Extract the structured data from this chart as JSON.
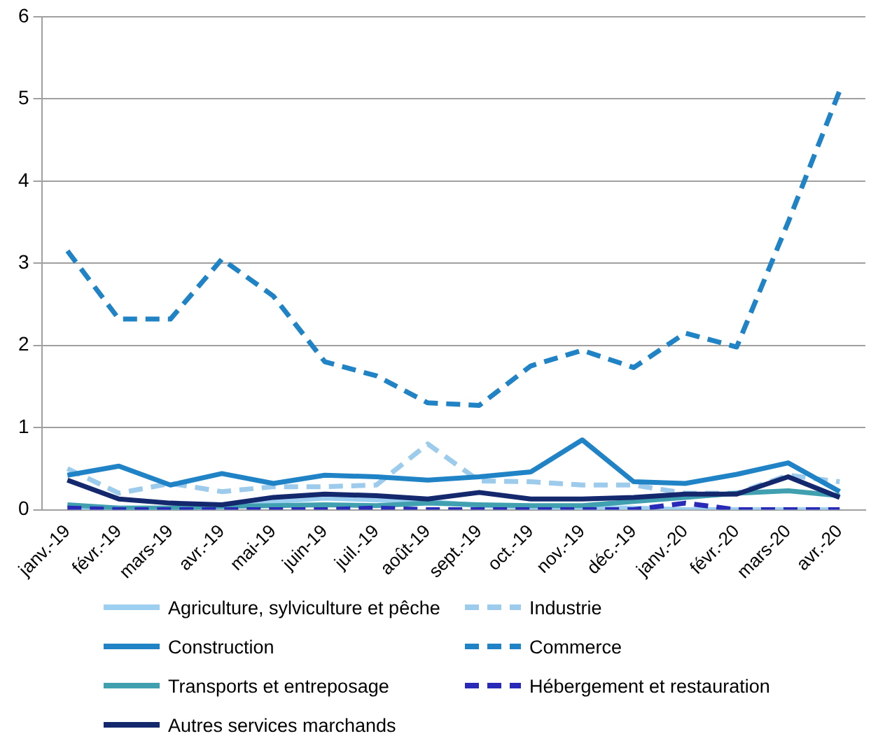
{
  "chart_data": {
    "type": "line",
    "categories": [
      "janv.-19",
      "févr.-19",
      "mars-19",
      "avr.-19",
      "mai-19",
      "juin-19",
      "juil.-19",
      "août-19",
      "sept.-19",
      "oct.-19",
      "nov.-19",
      "déc.-19",
      "janv.-20",
      "févr.-20",
      "mars-20",
      "avr.-20"
    ],
    "series": [
      {
        "name": "Agriculture, sylviculture et pêche",
        "color": "#9dd0f0",
        "line_style": "solid",
        "values": [
          0.03,
          0.02,
          0.02,
          0.03,
          0.1,
          0.14,
          0.12,
          0.1,
          0.05,
          0.03,
          0.02,
          0.02,
          0,
          0,
          0,
          0
        ]
      },
      {
        "name": "Industrie",
        "color": "#9dcbec",
        "line_style": "dashed",
        "values": [
          0.5,
          0.2,
          0.32,
          0.22,
          0.28,
          0.28,
          0.3,
          0.8,
          0.35,
          0.34,
          0.3,
          0.3,
          0.2,
          0.2,
          0.42,
          0.34
        ]
      },
      {
        "name": "Construction",
        "color": "#2083c6",
        "line_style": "solid",
        "values": [
          0.42,
          0.53,
          0.3,
          0.44,
          0.32,
          0.42,
          0.4,
          0.36,
          0.4,
          0.46,
          0.85,
          0.34,
          0.32,
          0.43,
          0.57,
          0.22
        ]
      },
      {
        "name": "Commerce",
        "color": "#2083c6",
        "line_style": "dashed",
        "values": [
          3.15,
          2.32,
          2.32,
          3.05,
          2.6,
          1.8,
          1.63,
          1.3,
          1.27,
          1.75,
          1.94,
          1.73,
          2.15,
          1.98,
          3.5,
          5.1
        ]
      },
      {
        "name": "Transports et entreposage",
        "color": "#40a0b0",
        "line_style": "solid",
        "values": [
          0.06,
          0.02,
          0.02,
          0.04,
          0.05,
          0.06,
          0.05,
          0.08,
          0.06,
          0.05,
          0.05,
          0.1,
          0.15,
          0.2,
          0.23,
          0.17
        ]
      },
      {
        "name": "Hébergement et restauration",
        "color": "#2a2ab8",
        "line_style": "dashed",
        "values": [
          0.02,
          0,
          0,
          0,
          0,
          0,
          0.02,
          0,
          0,
          0,
          0,
          0,
          0.08,
          0,
          0,
          0
        ]
      },
      {
        "name": "Autres services marchands",
        "color": "#14286e",
        "line_style": "solid",
        "values": [
          0.36,
          0.13,
          0.08,
          0.06,
          0.15,
          0.19,
          0.17,
          0.13,
          0.21,
          0.13,
          0.13,
          0.15,
          0.19,
          0.19,
          0.4,
          0.15
        ]
      }
    ],
    "ylim": [
      0,
      6
    ],
    "yticks": [
      0,
      1,
      2,
      3,
      4,
      5,
      6
    ],
    "grid": "y",
    "legend": "bottom",
    "marker": "none"
  }
}
